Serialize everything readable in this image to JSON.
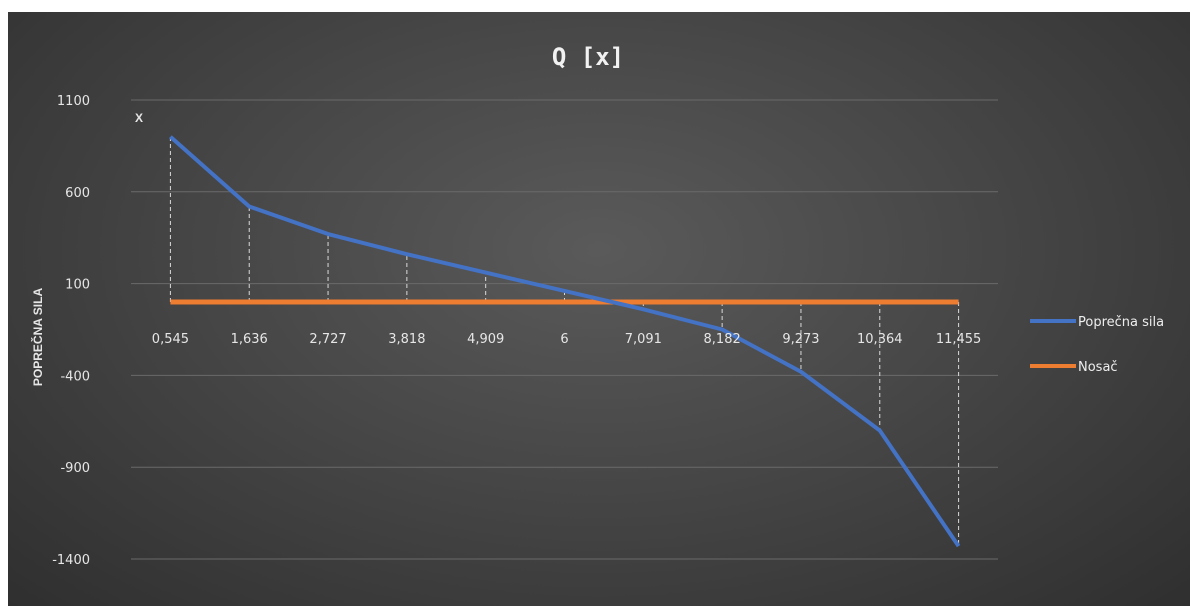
{
  "chart_data": {
    "type": "line",
    "title": "Q [x]",
    "xlabel": "X",
    "ylabel": "POPREČNA SILA",
    "ylim": [
      -1400,
      1100
    ],
    "yticks": [
      "1100",
      "600",
      "100",
      "-400",
      "-900",
      "-1400"
    ],
    "ytick_values": [
      1100,
      600,
      100,
      -400,
      -900,
      -1400
    ],
    "categories": [
      "0,545",
      "1,636",
      "2,727",
      "3,818",
      "4,909",
      "6",
      "7,091",
      "8,182",
      "9,273",
      "10,364",
      "11,455"
    ],
    "series": [
      {
        "name": "Poprečna sila",
        "color": "#4472c4",
        "values": [
          900,
          520,
          370,
          260,
          160,
          60,
          -40,
          -150,
          -380,
          -700,
          -1330
        ]
      },
      {
        "name": "Nosač",
        "color": "#ed7d31",
        "values": [
          0,
          0,
          0,
          0,
          0,
          0,
          0,
          0,
          0,
          0,
          0
        ]
      }
    ],
    "grid": true,
    "drop_lines": true,
    "legend": "right"
  }
}
